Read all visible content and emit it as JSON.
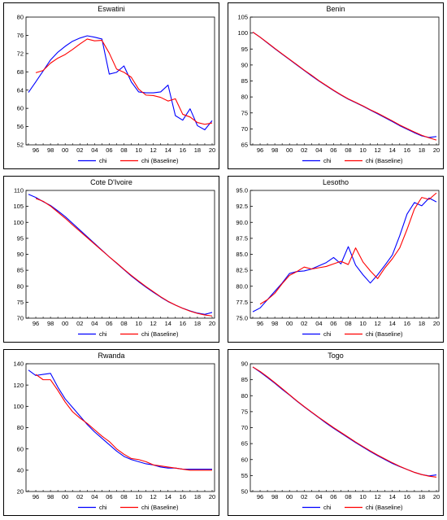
{
  "colors": {
    "chi": "#0000ff",
    "baseline": "#ff0000",
    "frame": "#000000"
  },
  "chart_data": [
    {
      "type": "line",
      "title": "Eswatini",
      "x": [
        1995,
        1996,
        1997,
        1998,
        1999,
        2000,
        2001,
        2002,
        2003,
        2004,
        2005,
        2006,
        2007,
        2008,
        2009,
        2010,
        2011,
        2012,
        2013,
        2014,
        2015,
        2016,
        2017,
        2018,
        2019,
        2020
      ],
      "xticks": [
        "96",
        "98",
        "00",
        "02",
        "04",
        "06",
        "08",
        "10",
        "12",
        "14",
        "16",
        "18",
        "20"
      ],
      "ylim": [
        52,
        80
      ],
      "yticks": [
        52,
        56,
        60,
        64,
        68,
        72,
        76,
        80
      ],
      "series": [
        {
          "name": "chi",
          "values": [
            63.5,
            65.8,
            68.2,
            70.6,
            72.3,
            73.6,
            74.7,
            75.4,
            75.9,
            75.6,
            75.2,
            67.5,
            67.9,
            69.3,
            65.8,
            63.6,
            63.4,
            63.4,
            63.6,
            65.1,
            58.4,
            57.4,
            59.9,
            56.2,
            55.3,
            57.3
          ]
        },
        {
          "name": "chi (Baseline)",
          "values": [
            null,
            67.8,
            68.3,
            69.9,
            71.0,
            71.8,
            72.9,
            74.1,
            75.2,
            74.8,
            74.9,
            72.1,
            68.6,
            67.9,
            66.8,
            64.2,
            62.9,
            62.8,
            62.4,
            61.6,
            62.1,
            58.7,
            58.1,
            56.9,
            56.5,
            56.8
          ]
        }
      ]
    },
    {
      "type": "line",
      "title": "Benin",
      "x": [
        1995,
        1996,
        1997,
        1998,
        1999,
        2000,
        2001,
        2002,
        2003,
        2004,
        2005,
        2006,
        2007,
        2008,
        2009,
        2010,
        2011,
        2012,
        2013,
        2014,
        2015,
        2016,
        2017,
        2018,
        2019,
        2020
      ],
      "xticks": [
        "96",
        "98",
        "00",
        "02",
        "04",
        "06",
        "08",
        "10",
        "12",
        "14",
        "16",
        "18",
        "20"
      ],
      "ylim": [
        65,
        105
      ],
      "yticks": [
        65,
        70,
        75,
        80,
        85,
        90,
        95,
        100,
        105
      ],
      "series": [
        {
          "name": "chi",
          "values": [
            100.3,
            98.7,
            96.9,
            95.1,
            93.4,
            91.7,
            90.0,
            88.3,
            86.6,
            85.0,
            83.5,
            82.0,
            80.6,
            79.3,
            78.2,
            77.1,
            75.9,
            74.7,
            73.5,
            72.3,
            71.0,
            69.9,
            68.8,
            67.8,
            67.3,
            67.6
          ]
        },
        {
          "name": "chi (Baseline)",
          "values": [
            100.3,
            98.7,
            97.0,
            95.2,
            93.5,
            91.8,
            90.1,
            88.4,
            86.8,
            85.1,
            83.6,
            82.1,
            80.7,
            79.4,
            78.3,
            77.2,
            76.0,
            74.9,
            73.7,
            72.5,
            71.2,
            70.1,
            69.0,
            68.0,
            67.2,
            66.5
          ]
        }
      ]
    },
    {
      "type": "line",
      "title": "Cote D'Ivoire",
      "x": [
        1995,
        1996,
        1997,
        1998,
        1999,
        2000,
        2001,
        2002,
        2003,
        2004,
        2005,
        2006,
        2007,
        2008,
        2009,
        2010,
        2011,
        2012,
        2013,
        2014,
        2015,
        2016,
        2017,
        2018,
        2019,
        2020
      ],
      "xticks": [
        "96",
        "98",
        "00",
        "02",
        "04",
        "06",
        "08",
        "10",
        "12",
        "14",
        "16",
        "18",
        "20"
      ],
      "ylim": [
        70,
        110
      ],
      "yticks": [
        70,
        75,
        80,
        85,
        90,
        95,
        100,
        105,
        110
      ],
      "series": [
        {
          "name": "chi",
          "values": [
            108.8,
            107.8,
            106.5,
            105.3,
            103.6,
            101.8,
            99.7,
            97.6,
            95.5,
            93.4,
            91.3,
            89.2,
            87.2,
            85.2,
            83.2,
            81.4,
            79.7,
            78.1,
            76.6,
            75.2,
            74.1,
            73.1,
            72.3,
            71.6,
            71.2,
            71.8
          ]
        },
        {
          "name": "chi (Baseline)",
          "values": [
            null,
            107.5,
            106.6,
            105.1,
            103.2,
            101.3,
            99.2,
            97.2,
            95.2,
            93.2,
            91.2,
            89.2,
            87.3,
            85.3,
            83.4,
            81.6,
            79.9,
            78.3,
            76.7,
            75.3,
            74.1,
            73.1,
            72.2,
            71.5,
            71.0,
            70.7
          ]
        }
      ]
    },
    {
      "type": "line",
      "title": "Lesotho",
      "x": [
        1995,
        1996,
        1997,
        1998,
        1999,
        2000,
        2001,
        2002,
        2003,
        2004,
        2005,
        2006,
        2007,
        2008,
        2009,
        2010,
        2011,
        2012,
        2013,
        2014,
        2015,
        2016,
        2017,
        2018,
        2019,
        2020
      ],
      "xticks": [
        "96",
        "98",
        "00",
        "02",
        "04",
        "06",
        "08",
        "10",
        "12",
        "14",
        "16",
        "18",
        "20"
      ],
      "ylim": [
        75.0,
        95.0
      ],
      "yticks": [
        "75.0",
        "77.5",
        "80.0",
        "82.5",
        "85.0",
        "87.5",
        "90.0",
        "92.5",
        "95.0"
      ],
      "series": [
        {
          "name": "chi",
          "values": [
            76.0,
            76.6,
            77.9,
            79.2,
            80.5,
            82.0,
            82.3,
            82.4,
            82.7,
            83.2,
            83.7,
            84.5,
            83.5,
            86.2,
            83.3,
            81.8,
            80.5,
            81.8,
            83.3,
            84.9,
            87.9,
            91.3,
            93.1,
            92.6,
            93.8,
            93.2
          ]
        },
        {
          "name": "chi (Baseline)",
          "values": [
            null,
            77.2,
            77.9,
            78.9,
            80.4,
            81.7,
            82.3,
            83.0,
            82.7,
            82.9,
            83.1,
            83.5,
            83.9,
            83.4,
            86.0,
            83.8,
            82.4,
            81.2,
            82.9,
            84.3,
            86.0,
            88.9,
            92.1,
            93.9,
            93.6,
            94.6
          ]
        }
      ]
    },
    {
      "type": "line",
      "title": "Rwanda",
      "x": [
        1995,
        1996,
        1997,
        1998,
        1999,
        2000,
        2001,
        2002,
        2003,
        2004,
        2005,
        2006,
        2007,
        2008,
        2009,
        2010,
        2011,
        2012,
        2013,
        2014,
        2015,
        2016,
        2017,
        2018,
        2019,
        2020
      ],
      "xticks": [
        "96",
        "98",
        "00",
        "02",
        "04",
        "06",
        "08",
        "10",
        "12",
        "14",
        "16",
        "18",
        "20"
      ],
      "ylim": [
        20,
        140
      ],
      "yticks": [
        20,
        40,
        60,
        80,
        100,
        120,
        140
      ],
      "series": [
        {
          "name": "chi",
          "values": [
            134,
            129,
            130,
            131,
            118,
            107,
            99,
            91,
            83,
            76,
            70,
            64,
            58,
            53,
            50,
            48,
            46,
            45,
            43,
            42,
            42,
            41,
            41,
            41,
            41,
            41
          ]
        },
        {
          "name": "chi (Baseline)",
          "values": [
            null,
            130,
            125,
            125,
            115,
            104,
            95,
            89,
            84,
            78,
            72,
            67,
            60,
            55,
            51,
            50,
            48,
            45,
            44,
            43,
            42,
            41,
            40,
            40,
            40,
            40
          ]
        }
      ]
    },
    {
      "type": "line",
      "title": "Togo",
      "x": [
        1995,
        1996,
        1997,
        1998,
        1999,
        2000,
        2001,
        2002,
        2003,
        2004,
        2005,
        2006,
        2007,
        2008,
        2009,
        2010,
        2011,
        2012,
        2013,
        2014,
        2015,
        2016,
        2017,
        2018,
        2019,
        2020
      ],
      "xticks": [
        "96",
        "98",
        "00",
        "02",
        "04",
        "06",
        "08",
        "10",
        "12",
        "14",
        "16",
        "18",
        "20"
      ],
      "ylim": [
        50,
        90
      ],
      "yticks": [
        50,
        55,
        60,
        65,
        70,
        75,
        80,
        85,
        90
      ],
      "series": [
        {
          "name": "chi",
          "values": [
            89.0,
            87.4,
            85.7,
            83.9,
            82.0,
            80.2,
            78.3,
            76.5,
            74.8,
            73.1,
            71.4,
            69.8,
            68.3,
            66.8,
            65.3,
            63.9,
            62.5,
            61.2,
            60.0,
            58.8,
            57.8,
            56.9,
            56.0,
            55.3,
            54.9,
            55.2
          ]
        },
        {
          "name": "chi (Baseline)",
          "values": [
            89.0,
            87.6,
            85.9,
            84.1,
            82.2,
            80.3,
            78.4,
            76.6,
            74.9,
            73.2,
            71.6,
            70.0,
            68.5,
            67.0,
            65.5,
            64.1,
            62.7,
            61.4,
            60.2,
            59.0,
            57.9,
            56.9,
            56.0,
            55.3,
            54.8,
            54.5
          ]
        }
      ]
    }
  ]
}
